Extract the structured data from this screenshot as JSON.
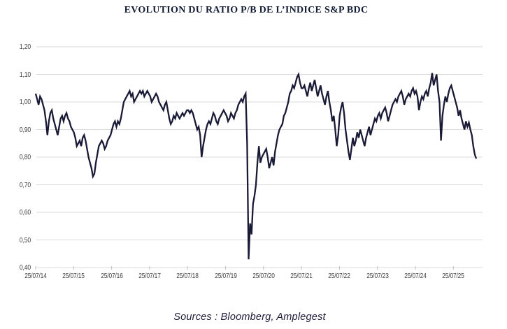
{
  "page": {
    "title": "EVOLUTION DU RATIO P/B DE L’INDICE S&P BDC",
    "source_note": "Sources : Bloomberg, Amplegest"
  },
  "chart_data": {
    "type": "line",
    "title": "EVOLUTION DU RATIO P/B DE L’INDICE S&P BDC",
    "source_note": "Sources : Bloomberg, Amplegest",
    "x_tick_labels": [
      "25/07/14",
      "25/07/15",
      "25/07/16",
      "25/07/17",
      "25/07/18",
      "25/07/19",
      "25/07/20",
      "25/07/21",
      "25/07/22",
      "25/07/23",
      "25/07/24",
      "25/07/25"
    ],
    "y_tick_labels": [
      "1,20",
      "1,10",
      "1,00",
      "0,90",
      "0,80",
      "0,70",
      "0,60",
      "0,50",
      "0,40"
    ],
    "ylim": [
      0.4,
      1.2
    ],
    "grid": "horizontal-only",
    "legend": "none",
    "background": "#ffffff",
    "line_color": "#181a36",
    "gridline_color": "#d9d9d9",
    "tick_text_color": "#3f3f3f",
    "series": [
      {
        "name": "Ratio P/B de l’indice S&P BDC",
        "sampling": "biweekly",
        "points_per_year": 26,
        "x_start_label": "25/07/14",
        "values": [
          1.03,
          1.01,
          0.99,
          1.02,
          1.01,
          0.99,
          0.97,
          0.93,
          0.88,
          0.93,
          0.96,
          0.97,
          0.94,
          0.92,
          0.9,
          0.88,
          0.91,
          0.94,
          0.95,
          0.93,
          0.95,
          0.96,
          0.94,
          0.93,
          0.91,
          0.9,
          0.89,
          0.87,
          0.84,
          0.85,
          0.86,
          0.84,
          0.87,
          0.88,
          0.86,
          0.83,
          0.8,
          0.78,
          0.76,
          0.73,
          0.74,
          0.78,
          0.81,
          0.84,
          0.85,
          0.86,
          0.85,
          0.83,
          0.84,
          0.86,
          0.87,
          0.88,
          0.9,
          0.92,
          0.93,
          0.91,
          0.93,
          0.92,
          0.94,
          0.97,
          1.0,
          1.01,
          1.02,
          1.03,
          1.04,
          1.02,
          1.03,
          1.0,
          1.01,
          1.02,
          1.03,
          1.04,
          1.03,
          1.04,
          1.02,
          1.03,
          1.04,
          1.03,
          1.02,
          1.0,
          1.01,
          1.02,
          1.03,
          1.02,
          1.0,
          0.99,
          0.98,
          0.97,
          0.99,
          1.0,
          0.97,
          0.94,
          0.92,
          0.93,
          0.95,
          0.94,
          0.96,
          0.95,
          0.94,
          0.95,
          0.96,
          0.95,
          0.96,
          0.97,
          0.97,
          0.96,
          0.97,
          0.96,
          0.94,
          0.92,
          0.9,
          0.91,
          0.88,
          0.8,
          0.84,
          0.87,
          0.9,
          0.92,
          0.93,
          0.92,
          0.94,
          0.96,
          0.95,
          0.93,
          0.92,
          0.94,
          0.95,
          0.96,
          0.97,
          0.96,
          0.95,
          0.93,
          0.94,
          0.96,
          0.95,
          0.94,
          0.96,
          0.97,
          0.99,
          1.0,
          1.01,
          1.0,
          1.02,
          1.03,
          0.85,
          0.43,
          0.56,
          0.52,
          0.63,
          0.66,
          0.7,
          0.78,
          0.84,
          0.78,
          0.8,
          0.81,
          0.82,
          0.83,
          0.8,
          0.76,
          0.78,
          0.8,
          0.77,
          0.82,
          0.85,
          0.88,
          0.9,
          0.91,
          0.92,
          0.95,
          0.96,
          0.98,
          1.0,
          1.03,
          1.04,
          1.06,
          1.05,
          1.07,
          1.09,
          1.1,
          1.07,
          1.05,
          1.05,
          1.06,
          1.04,
          1.02,
          1.05,
          1.07,
          1.04,
          1.06,
          1.08,
          1.05,
          1.02,
          1.04,
          1.06,
          1.03,
          1.01,
          0.99,
          1.02,
          1.04,
          1.0,
          0.97,
          0.93,
          0.95,
          0.9,
          0.84,
          0.88,
          0.95,
          0.98,
          1.0,
          0.96,
          0.9,
          0.86,
          0.82,
          0.79,
          0.83,
          0.87,
          0.84,
          0.86,
          0.89,
          0.87,
          0.9,
          0.88,
          0.86,
          0.84,
          0.87,
          0.89,
          0.91,
          0.88,
          0.9,
          0.92,
          0.94,
          0.93,
          0.95,
          0.96,
          0.94,
          0.96,
          0.97,
          0.98,
          0.96,
          0.93,
          0.95,
          0.97,
          0.99,
          1.0,
          1.01,
          1.0,
          1.02,
          1.03,
          1.04,
          1.02,
          0.99,
          1.01,
          1.02,
          1.03,
          1.02,
          1.04,
          1.05,
          1.03,
          1.04,
          1.02,
          0.97,
          1.0,
          1.02,
          1.01,
          1.03,
          1.04,
          1.02,
          1.05,
          1.07,
          1.105,
          1.06,
          1.08,
          1.1,
          1.04,
          1.0,
          0.86,
          0.95,
          0.99,
          1.02,
          1.0,
          1.03,
          1.05,
          1.06,
          1.04,
          1.02,
          1.0,
          0.98,
          0.95,
          0.97,
          0.94,
          0.92,
          0.9,
          0.93,
          0.91,
          0.925,
          0.9,
          0.88,
          0.84,
          0.81,
          0.795
        ]
      }
    ]
  }
}
